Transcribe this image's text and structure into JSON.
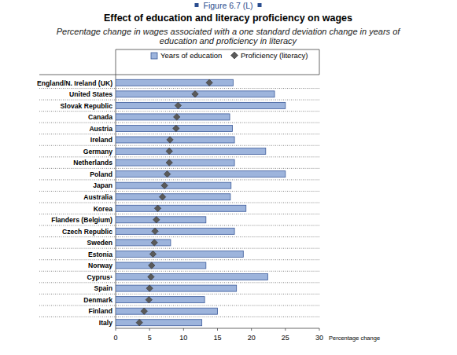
{
  "chart_data": {
    "type": "bar",
    "orientation": "horizontal",
    "figure_label": "Figure 6.7 (L)",
    "title": "Effect of education and literacy proficiency on wages",
    "subtitle": "Percentage change in wages associated with a one standard deviation change in years of education and proficiency in literacy",
    "x_label": "Percentage change",
    "categories": [
      "England/N. Ireland (UK)",
      "United States",
      "Slovak Republic",
      "Canada",
      "Austria",
      "Ireland",
      "Germany",
      "Netherlands",
      "Poland",
      "Japan",
      "Australia",
      "Korea",
      "Flanders (Belgium)",
      "Czech Republic",
      "Sweden",
      "Estonia",
      "Norway",
      "Cyprus¹",
      "Spain",
      "Denmark",
      "Finland",
      "Italy"
    ],
    "series": [
      {
        "name": "Years of education",
        "color": "#9db4dc",
        "type": "bar",
        "values": [
          17.3,
          23.4,
          25.0,
          16.8,
          17.2,
          17.5,
          22.1,
          17.5,
          25.0,
          17.0,
          16.9,
          19.2,
          13.3,
          17.5,
          8.1,
          18.8,
          13.3,
          22.4,
          17.8,
          13.1,
          15.0,
          12.7
        ]
      },
      {
        "name": "Proficiency (literacy)",
        "color": "#5a5a5a",
        "type": "scatter",
        "marker": "diamond",
        "values": [
          13.8,
          11.7,
          9.2,
          9.0,
          8.9,
          8.0,
          7.9,
          7.9,
          7.6,
          7.2,
          6.9,
          6.2,
          6.0,
          5.8,
          5.7,
          5.5,
          5.3,
          5.2,
          5.0,
          4.9,
          4.2,
          3.5
        ]
      }
    ],
    "xlim": [
      0,
      30
    ],
    "xticks": [
      0,
      5,
      10,
      15,
      20,
      25,
      30
    ],
    "grid": false,
    "legend": "top"
  }
}
